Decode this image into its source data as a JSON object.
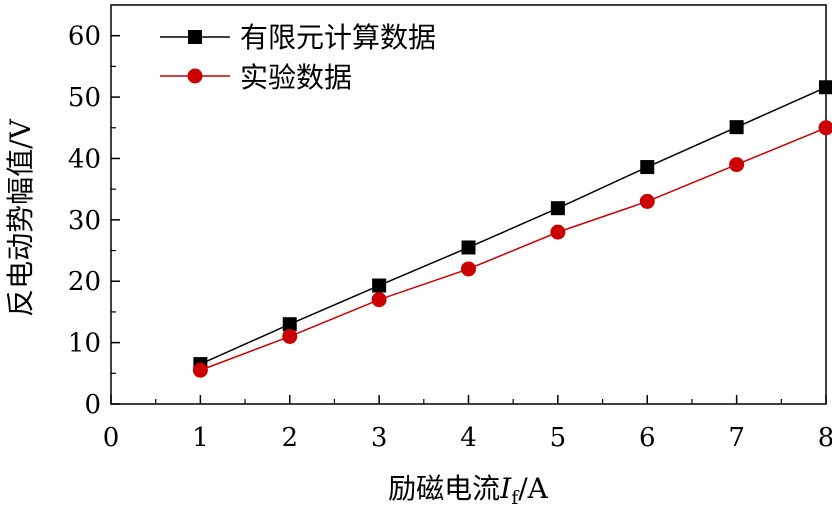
{
  "chart_data": {
    "type": "line",
    "xlabel": "励磁电流If/A",
    "xlabel_parts": {
      "prefix": "励磁电流",
      "var": "I",
      "sub": "f",
      "suffix": "/A"
    },
    "ylabel": "反电动势幅值/V",
    "xlim": [
      0,
      8
    ],
    "ylim": [
      0,
      65
    ],
    "x_ticks": [
      0,
      1,
      2,
      3,
      4,
      5,
      6,
      7,
      8
    ],
    "y_ticks": [
      0,
      10,
      20,
      30,
      40,
      50,
      60
    ],
    "grid": false,
    "legend_position": "top-left",
    "x": [
      1,
      2,
      3,
      4,
      5,
      6,
      7,
      8
    ],
    "series": [
      {
        "name": "有限元计算数据",
        "values": [
          6.5,
          13,
          19.3,
          25.5,
          31.9,
          38.6,
          45.1,
          51.6
        ],
        "color": "#000000",
        "marker": "square"
      },
      {
        "name": "实验数据",
        "values": [
          5.5,
          11,
          17,
          22,
          28,
          33,
          39,
          45
        ],
        "color": "#cc0000",
        "marker": "circle"
      }
    ]
  }
}
